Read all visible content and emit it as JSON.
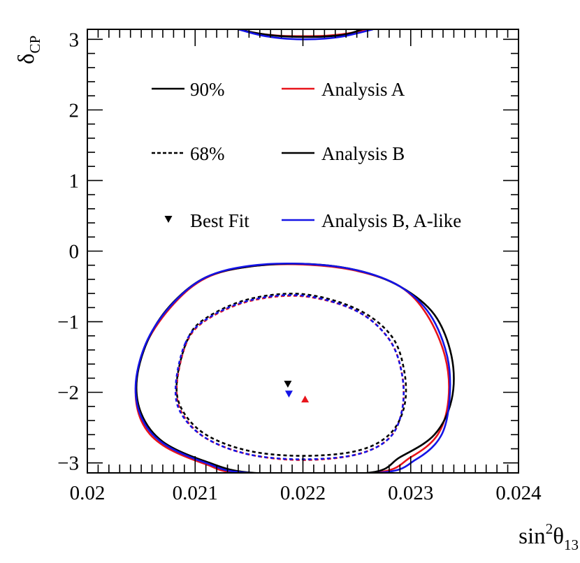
{
  "chart_data": {
    "type": "line",
    "title": "",
    "xlabel": {
      "prefix": "sin",
      "sup": "2",
      "symbol": "θ",
      "sub": "13"
    },
    "ylabel": {
      "symbol": "δ",
      "sub": "CP"
    },
    "xlim": [
      0.02,
      0.024
    ],
    "ylim": [
      -3.1416,
      3.1416
    ],
    "x_ticks": [
      {
        "value": 0.02,
        "label": "0.02"
      },
      {
        "value": 0.021,
        "label": "0.021"
      },
      {
        "value": 0.022,
        "label": "0.022"
      },
      {
        "value": 0.023,
        "label": "0.023"
      },
      {
        "value": 0.024,
        "label": "0.024"
      }
    ],
    "y_ticks": [
      {
        "value": -3,
        "label": "−3"
      },
      {
        "value": -2,
        "label": "−2"
      },
      {
        "value": -1,
        "label": "−1"
      },
      {
        "value": 0,
        "label": "0"
      },
      {
        "value": 1,
        "label": "1"
      },
      {
        "value": 2,
        "label": "2"
      },
      {
        "value": 3,
        "label": "3"
      }
    ],
    "legend": {
      "placement": "top",
      "entries": [
        {
          "label": "90%",
          "style": "solid",
          "color": "#000000"
        },
        {
          "label": "68%",
          "style": "dashed",
          "color": "#000000"
        },
        {
          "label": "Best Fit",
          "style": "marker",
          "color": "#000000"
        },
        {
          "label": "Analysis A",
          "style": "solid",
          "color": "#e8141b"
        },
        {
          "label": "Analysis B",
          "style": "solid",
          "color": "#000000"
        },
        {
          "label": "Analysis B, A-like",
          "style": "solid",
          "color": "#1414e6"
        }
      ]
    },
    "series": [
      {
        "name": "Analysis A",
        "color": "#e8141b",
        "best_fit": {
          "x": 0.02202,
          "y": -2.1,
          "marker": "triangle-up"
        },
        "contours": [
          {
            "level": "90%",
            "style": "solid",
            "wrap_top": [
              [
                0.0214,
                3.1416
              ],
              [
                0.0216,
                3.08
              ],
              [
                0.0218,
                3.05
              ],
              [
                0.022,
                3.045
              ],
              [
                0.0222,
                3.05
              ],
              [
                0.0224,
                3.08
              ],
              [
                0.0226,
                3.1416
              ]
            ],
            "points": [
              [
                0.02055,
                -1.3
              ],
              [
                0.02045,
                -1.9
              ],
              [
                0.0205,
                -2.4
              ],
              [
                0.0207,
                -2.75
              ],
              [
                0.0211,
                -3.02
              ],
              [
                0.02145,
                -3.1416
              ],
              [
                0.02265,
                -3.1416
              ],
              [
                0.023,
                -2.92
              ],
              [
                0.02325,
                -2.6
              ],
              [
                0.02335,
                -2.1
              ],
              [
                0.02332,
                -1.5
              ],
              [
                0.02315,
                -0.9
              ],
              [
                0.0229,
                -0.5
              ],
              [
                0.0225,
                -0.28
              ],
              [
                0.022,
                -0.19
              ],
              [
                0.0215,
                -0.22
              ],
              [
                0.0211,
                -0.38
              ],
              [
                0.0208,
                -0.75
              ],
              [
                0.02055,
                -1.3
              ]
            ]
          },
          {
            "level": "68%",
            "style": "dashed",
            "points": [
              [
                0.02092,
                -1.3
              ],
              [
                0.02083,
                -1.9
              ],
              [
                0.02088,
                -2.3
              ],
              [
                0.0211,
                -2.65
              ],
              [
                0.0215,
                -2.88
              ],
              [
                0.022,
                -2.96
              ],
              [
                0.0225,
                -2.88
              ],
              [
                0.0228,
                -2.65
              ],
              [
                0.02292,
                -2.25
              ],
              [
                0.02292,
                -1.75
              ],
              [
                0.0228,
                -1.25
              ],
              [
                0.0225,
                -0.85
              ],
              [
                0.022,
                -0.64
              ],
              [
                0.0215,
                -0.71
              ],
              [
                0.0211,
                -0.98
              ],
              [
                0.02092,
                -1.3
              ]
            ]
          }
        ]
      },
      {
        "name": "Analysis B",
        "color": "#000000",
        "best_fit": {
          "x": 0.02186,
          "y": -1.88,
          "marker": "triangle-down"
        },
        "contours": [
          {
            "level": "90%",
            "style": "solid",
            "wrap_top": [
              [
                0.0214,
                3.1416
              ],
              [
                0.0216,
                3.08
              ],
              [
                0.0218,
                3.045
              ],
              [
                0.022,
                3.035
              ],
              [
                0.0222,
                3.04
              ],
              [
                0.0224,
                3.07
              ],
              [
                0.02255,
                3.1416
              ]
            ],
            "points": [
              [
                0.02058,
                -1.2
              ],
              [
                0.02046,
                -1.8
              ],
              [
                0.0205,
                -2.3
              ],
              [
                0.0207,
                -2.7
              ],
              [
                0.0211,
                -2.98
              ],
              [
                0.02155,
                -3.1416
              ],
              [
                0.0226,
                -3.1416
              ],
              [
                0.0229,
                -2.92
              ],
              [
                0.02322,
                -2.6
              ],
              [
                0.02338,
                -2.1
              ],
              [
                0.02338,
                -1.5
              ],
              [
                0.02322,
                -0.9
              ],
              [
                0.0229,
                -0.5
              ],
              [
                0.0225,
                -0.27
              ],
              [
                0.022,
                -0.18
              ],
              [
                0.0215,
                -0.22
              ],
              [
                0.0211,
                -0.37
              ],
              [
                0.0208,
                -0.72
              ],
              [
                0.02058,
                -1.2
              ]
            ]
          },
          {
            "level": "68%",
            "style": "dashed",
            "points": [
              [
                0.02093,
                -1.25
              ],
              [
                0.02083,
                -1.85
              ],
              [
                0.02088,
                -2.25
              ],
              [
                0.0211,
                -2.6
              ],
              [
                0.0215,
                -2.83
              ],
              [
                0.022,
                -2.9
              ],
              [
                0.0225,
                -2.83
              ],
              [
                0.0228,
                -2.6
              ],
              [
                0.02294,
                -2.2
              ],
              [
                0.02294,
                -1.7
              ],
              [
                0.02282,
                -1.2
              ],
              [
                0.0225,
                -0.82
              ],
              [
                0.022,
                -0.61
              ],
              [
                0.0215,
                -0.68
              ],
              [
                0.0211,
                -0.95
              ],
              [
                0.02093,
                -1.25
              ]
            ]
          }
        ]
      },
      {
        "name": "Analysis B, A-like",
        "color": "#1414e6",
        "best_fit": {
          "x": 0.02187,
          "y": -2.02,
          "marker": "triangle-down"
        },
        "contours": [
          {
            "level": "90%",
            "style": "solid",
            "wrap_top": [
              [
                0.0214,
                3.1416
              ],
              [
                0.0216,
                3.06
              ],
              [
                0.0218,
                3.015
              ],
              [
                0.022,
                3.0
              ],
              [
                0.0222,
                3.01
              ],
              [
                0.0224,
                3.05
              ],
              [
                0.02265,
                3.1416
              ]
            ],
            "points": [
              [
                0.02056,
                -1.25
              ],
              [
                0.02045,
                -1.85
              ],
              [
                0.0205,
                -2.35
              ],
              [
                0.0207,
                -2.72
              ],
              [
                0.0211,
                -3.0
              ],
              [
                0.0215,
                -3.1416
              ],
              [
                0.0227,
                -3.1416
              ],
              [
                0.02305,
                -2.95
              ],
              [
                0.02328,
                -2.62
              ],
              [
                0.02336,
                -2.1
              ],
              [
                0.02334,
                -1.5
              ],
              [
                0.02318,
                -0.9
              ],
              [
                0.0229,
                -0.5
              ],
              [
                0.0225,
                -0.27
              ],
              [
                0.022,
                -0.18
              ],
              [
                0.0215,
                -0.21
              ],
              [
                0.0211,
                -0.37
              ],
              [
                0.0208,
                -0.73
              ],
              [
                0.02056,
                -1.25
              ]
            ]
          },
          {
            "level": "68%",
            "style": "dashed",
            "points": [
              [
                0.02091,
                -1.3
              ],
              [
                0.02082,
                -1.9
              ],
              [
                0.02087,
                -2.3
              ],
              [
                0.0211,
                -2.65
              ],
              [
                0.0215,
                -2.88
              ],
              [
                0.022,
                -2.95
              ],
              [
                0.0225,
                -2.88
              ],
              [
                0.0228,
                -2.65
              ],
              [
                0.02292,
                -2.25
              ],
              [
                0.02292,
                -1.75
              ],
              [
                0.0228,
                -1.25
              ],
              [
                0.0225,
                -0.85
              ],
              [
                0.022,
                -0.63
              ],
              [
                0.0215,
                -0.7
              ],
              [
                0.0211,
                -0.97
              ],
              [
                0.02091,
                -1.3
              ]
            ]
          }
        ]
      }
    ]
  }
}
